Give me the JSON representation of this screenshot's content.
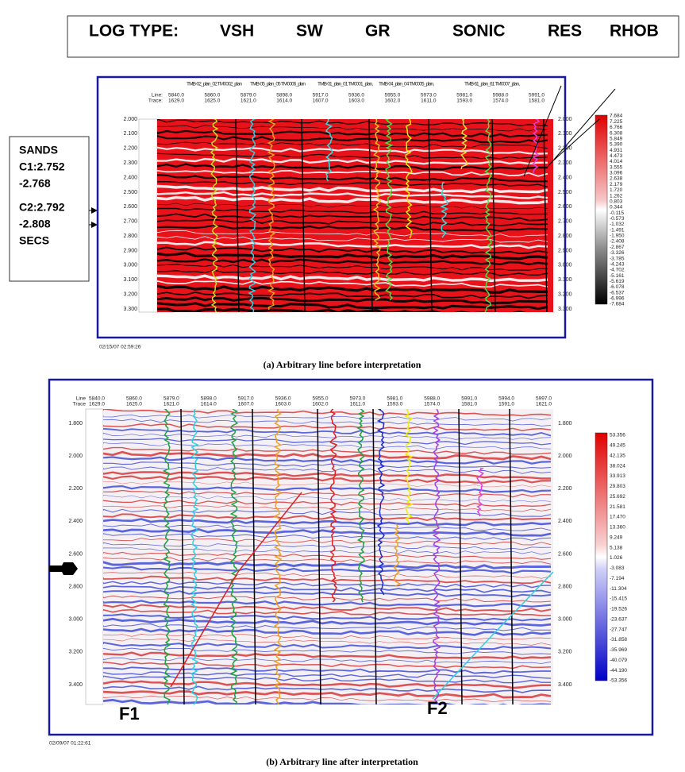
{
  "header": {
    "label": "LOG TYPE:",
    "types": [
      "VSH",
      "SW",
      "GR",
      "SONIC",
      "RES",
      "RHOB"
    ]
  },
  "sands_note": {
    "lines": [
      "SANDS",
      "C1:2.752",
      "-2.768",
      "C2:2.792",
      "-2.808",
      "SECS"
    ]
  },
  "panel_a": {
    "row_labels": [
      "Line:",
      "Trace:"
    ],
    "wells": [
      "TMB-02_plan_02 TM0002_plan",
      "TMB-05_plan_05 TM0006_plan",
      "TMB-01_plan_01 TM0001_plan,",
      "TMB-04_plan_04 TM0005_plan,",
      "TMB-61_plan_61 TM0007_plan,"
    ],
    "line_values": [
      "5840.0",
      "5860.0",
      "5879.0",
      "5898.0",
      "5917.0",
      "5936.0",
      "5955.0",
      "5973.0",
      "5981.0",
      "5988.0",
      "5991.0"
    ],
    "trace_values": [
      "1629.0",
      "1625.0",
      "1621.0",
      "1614.0",
      "1607.0",
      "1603.0",
      "1602.0",
      "1611.0",
      "1593.0",
      "1574.0",
      "1581.0"
    ],
    "time_ticks": [
      "2.000",
      "2.100",
      "2.200",
      "2.300",
      "2.400",
      "2.500",
      "2.600",
      "2.700",
      "2.800",
      "2.900",
      "3.000",
      "3.100",
      "3.200",
      "3.300"
    ],
    "colorbar": [
      "7.684",
      "7.225",
      "6.766",
      "6.308",
      "5.849",
      "5.390",
      "4.931",
      "4.473",
      "4.014",
      "3.555",
      "3.096",
      "2.638",
      "2.179",
      "1.720",
      "1.262",
      "0.803",
      "0.344",
      "-0.115",
      "-0.573",
      "-1.032",
      "-1.491",
      "-1.950",
      "-2.408",
      "-2.867",
      "-3.326",
      "-3.785",
      "-4.243",
      "-4.702",
      "-5.161",
      "-5.619",
      "-6.078",
      "-6.537",
      "-6.996",
      "-7.684"
    ],
    "timestamp": "02/15/07  02:59:26",
    "caption": "(a) Arbitrary line before interpretation"
  },
  "panel_b": {
    "row_labels": [
      "Line",
      "Trace"
    ],
    "line_values": [
      "5840.0",
      "5860.0",
      "5879.0",
      "5898.0",
      "5917.0",
      "5936.0",
      "5955.0",
      "5973.0",
      "5981.0",
      "5988.0",
      "5991.0",
      "5994.0",
      "5997.0"
    ],
    "trace_values": [
      "1629.0",
      "1625.0",
      "1621.0",
      "1614.0",
      "1607.0",
      "1603.0",
      "1602.0",
      "1611.0",
      "1593.0",
      "1574.0",
      "1581.0",
      "1591.0",
      "1621.0"
    ],
    "time_ticks": [
      "1.800",
      "2.000",
      "2.200",
      "2.400",
      "2.600",
      "2.800",
      "3.000",
      "3.200",
      "3.400"
    ],
    "colorbar": [
      "53.356",
      "49.245",
      "42.135",
      "38.024",
      "33.913",
      "29.803",
      "25.692",
      "21.581",
      "17.470",
      "13.360",
      "9.249",
      "5.138",
      "1.026",
      "-3.083",
      "-7.194",
      "-11.304",
      "-15.415",
      "-19.526",
      "-23.637",
      "-27.747",
      "-31.858",
      "-35.969",
      "-40.079",
      "-44.190",
      "-53.356"
    ],
    "faults": [
      "F1",
      "F2"
    ],
    "timestamp": "02/09/07  01:22:61",
    "caption": "(b) Arbitrary line after interpretation"
  }
}
